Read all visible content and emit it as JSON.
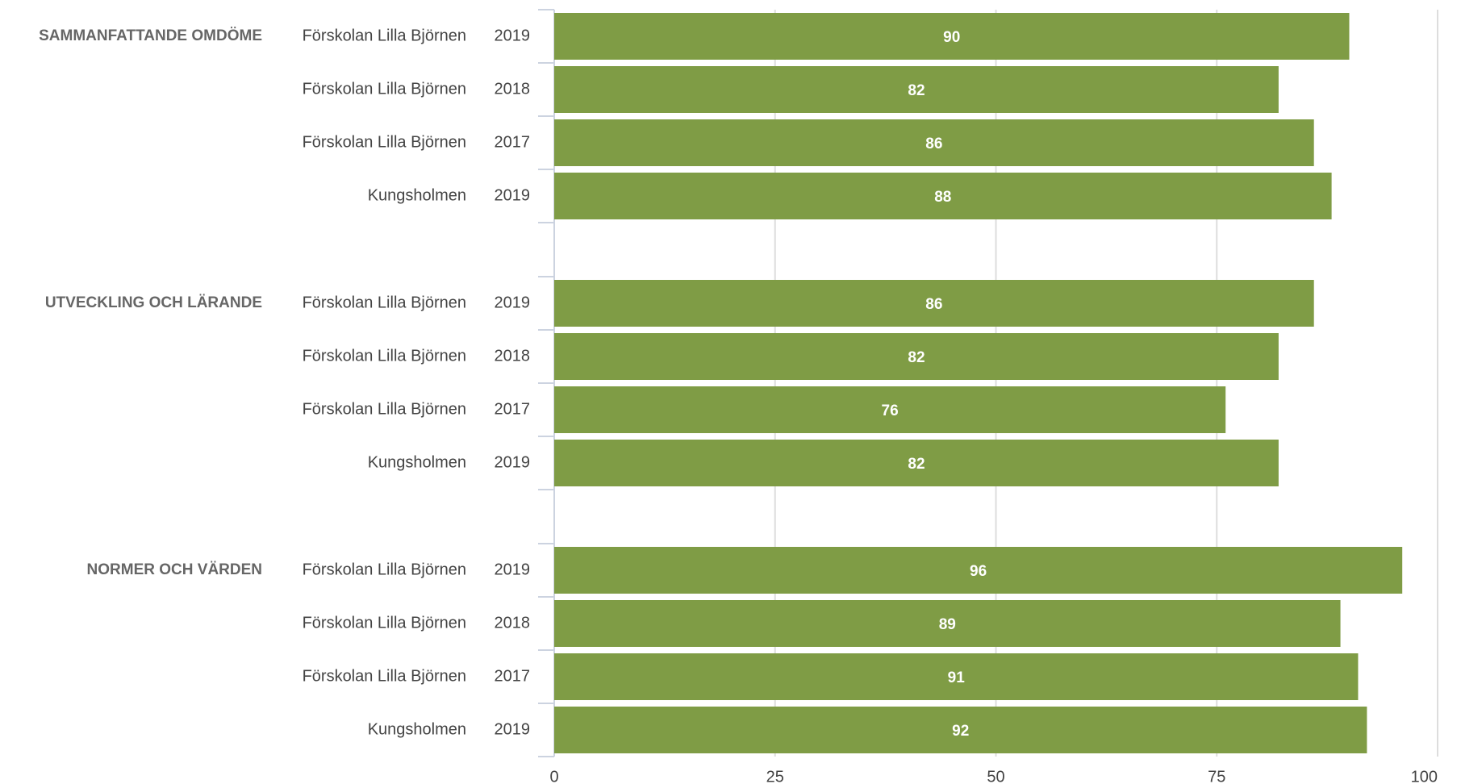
{
  "chart_data": {
    "type": "bar",
    "orientation": "horizontal",
    "color": "#7f9c45",
    "xlim": [
      0,
      100
    ],
    "xticks": [
      0,
      25,
      50,
      75,
      100
    ],
    "grid": true,
    "groups": [
      {
        "name": "SAMMANFATTANDE OMDÖME",
        "categories": [
          [
            "Förskolan Lilla Björnen",
            "2019"
          ],
          [
            "Förskolan Lilla Björnen",
            "2018"
          ],
          [
            "Förskolan Lilla Björnen",
            "2017"
          ],
          [
            "Kungsholmen",
            "2019"
          ]
        ],
        "values": [
          90,
          82,
          86,
          88
        ]
      },
      {
        "name": "UTVECKLING OCH LÄRANDE",
        "categories": [
          [
            "Förskolan Lilla Björnen",
            "2019"
          ],
          [
            "Förskolan Lilla Björnen",
            "2018"
          ],
          [
            "Förskolan Lilla Björnen",
            "2017"
          ],
          [
            "Kungsholmen",
            "2019"
          ]
        ],
        "values": [
          86,
          82,
          76,
          82
        ]
      },
      {
        "name": "NORMER OCH VÄRDEN",
        "categories": [
          [
            "Förskolan Lilla Björnen",
            "2019"
          ],
          [
            "Förskolan Lilla Björnen",
            "2018"
          ],
          [
            "Förskolan Lilla Björnen",
            "2017"
          ],
          [
            "Kungsholmen",
            "2019"
          ]
        ],
        "values": [
          96,
          89,
          91,
          92
        ]
      }
    ]
  }
}
